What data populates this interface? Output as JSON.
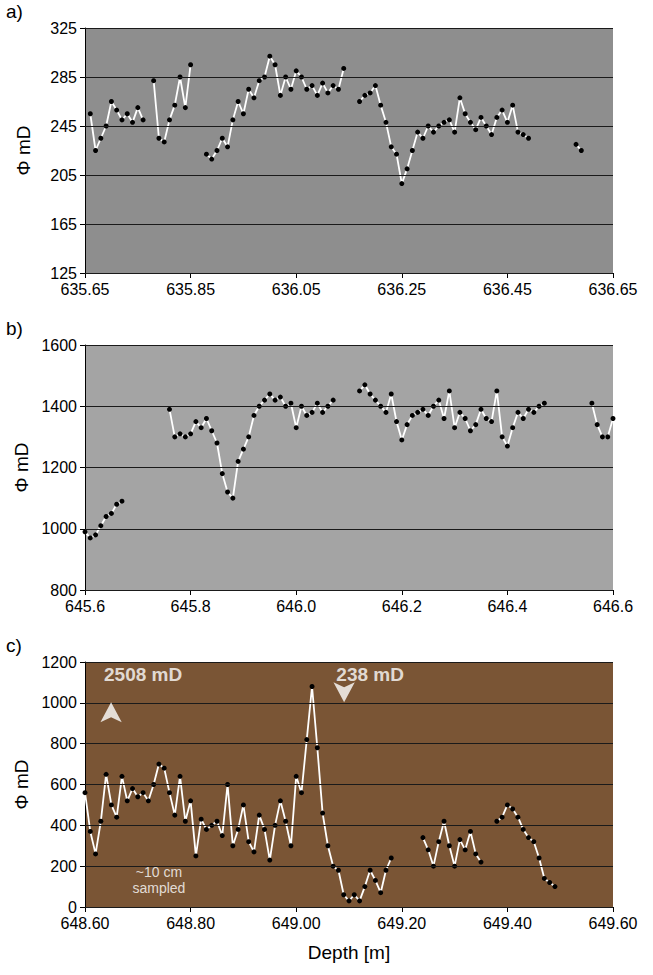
{
  "chart_data": [
    {
      "type": "line",
      "title": "a)",
      "ylabel": "Φ mD",
      "color": "#ffffff",
      "marker": "circle",
      "grid": true,
      "xlim": [
        635.65,
        636.65
      ],
      "xticks": [
        635.65,
        635.85,
        636.05,
        636.25,
        636.45,
        636.65
      ],
      "ylim": [
        125,
        325
      ],
      "yticks": [
        125,
        165,
        205,
        245,
        285,
        325
      ],
      "x": [
        635.66,
        635.67,
        635.68,
        635.69,
        635.7,
        635.71,
        635.72,
        635.73,
        635.74,
        635.75,
        635.76,
        635.77,
        635.78,
        635.79,
        635.8,
        635.81,
        635.82,
        635.83,
        635.84,
        635.85,
        635.86,
        635.88,
        635.89,
        635.9,
        635.91,
        635.92,
        635.93,
        635.94,
        635.95,
        635.96,
        635.97,
        635.98,
        635.99,
        636.0,
        636.01,
        636.02,
        636.03,
        636.04,
        636.05,
        636.06,
        636.07,
        636.08,
        636.09,
        636.1,
        636.11,
        636.12,
        636.13,
        636.14,
        636.15,
        636.17,
        636.18,
        636.19,
        636.2,
        636.21,
        636.22,
        636.23,
        636.24,
        636.25,
        636.26,
        636.27,
        636.28,
        636.29,
        636.3,
        636.31,
        636.32,
        636.33,
        636.34,
        636.35,
        636.36,
        636.37,
        636.38,
        636.39,
        636.4,
        636.41,
        636.42,
        636.43,
        636.44,
        636.45,
        636.46,
        636.47,
        636.48,
        636.49,
        636.5,
        636.58,
        636.59
      ],
      "values": [
        255,
        225,
        235,
        245,
        265,
        258,
        250,
        255,
        248,
        260,
        250,
        null,
        282,
        235,
        232,
        250,
        262,
        285,
        260,
        295,
        null,
        222,
        218,
        225,
        235,
        228,
        250,
        265,
        255,
        275,
        268,
        282,
        285,
        302,
        295,
        270,
        285,
        275,
        290,
        285,
        275,
        278,
        270,
        280,
        272,
        278,
        275,
        292,
        null,
        265,
        270,
        272,
        278,
        262,
        248,
        228,
        222,
        198,
        210,
        225,
        240,
        235,
        245,
        240,
        245,
        248,
        250,
        240,
        268,
        255,
        248,
        242,
        252,
        245,
        238,
        252,
        258,
        248,
        262,
        240,
        238,
        235,
        null,
        230,
        225
      ]
    },
    {
      "type": "line",
      "title": "b)",
      "ylabel": "Φ mD",
      "color": "#ffffff",
      "marker": "circle",
      "grid": true,
      "xlim": [
        645.6,
        646.6
      ],
      "xticks": [
        645.6,
        645.8,
        {
          "value": 646,
          "label": "646.0"
        },
        646.2,
        646.4,
        646.6
      ],
      "ylim": [
        800,
        1600
      ],
      "yticks": [
        800,
        1000,
        1200,
        1400,
        1600
      ],
      "x": [
        645.6,
        645.61,
        645.62,
        645.63,
        645.64,
        645.65,
        645.66,
        645.67,
        645.68,
        645.76,
        645.77,
        645.78,
        645.79,
        645.8,
        645.81,
        645.82,
        645.83,
        645.84,
        645.85,
        645.86,
        645.87,
        645.88,
        645.89,
        645.9,
        645.91,
        645.92,
        645.93,
        645.94,
        645.95,
        645.96,
        645.97,
        645.98,
        645.99,
        646.0,
        646.01,
        646.02,
        646.03,
        646.04,
        646.05,
        646.06,
        646.07,
        646.08,
        646.12,
        646.13,
        646.14,
        646.15,
        646.16,
        646.17,
        646.18,
        646.19,
        646.2,
        646.21,
        646.22,
        646.23,
        646.24,
        646.25,
        646.26,
        646.27,
        646.28,
        646.29,
        646.3,
        646.31,
        646.32,
        646.33,
        646.34,
        646.35,
        646.36,
        646.37,
        646.38,
        646.39,
        646.4,
        646.41,
        646.42,
        646.43,
        646.44,
        646.45,
        646.46,
        646.47,
        646.48,
        646.56,
        646.57,
        646.58,
        646.59,
        646.6
      ],
      "values": [
        990,
        970,
        980,
        1010,
        1040,
        1050,
        1080,
        1090,
        null,
        1390,
        1300,
        1310,
        1300,
        1310,
        1350,
        1330,
        1360,
        1320,
        1280,
        1180,
        1120,
        1100,
        1220,
        1260,
        1300,
        1370,
        1400,
        1420,
        1440,
        1420,
        1430,
        1400,
        1410,
        1330,
        1400,
        1370,
        1380,
        1410,
        1380,
        1400,
        1420,
        null,
        1450,
        1470,
        1440,
        1420,
        1400,
        1380,
        1440,
        1350,
        1290,
        1340,
        1370,
        1380,
        1390,
        1370,
        1400,
        1420,
        1360,
        1450,
        1330,
        1380,
        1360,
        1320,
        1340,
        1390,
        1360,
        1350,
        1450,
        1300,
        1270,
        1330,
        1380,
        1360,
        1390,
        1380,
        1400,
        1410,
        null,
        1410,
        1340,
        1300,
        1300,
        1360
      ]
    },
    {
      "type": "line",
      "title": "c)",
      "ylabel": "Φ mD",
      "xlabel": "Depth [m]",
      "color": "#ffffff",
      "marker": "circle",
      "grid": true,
      "xlim": [
        648.6,
        649.6
      ],
      "xticks": [
        {
          "value": 648.6,
          "label": "648.60"
        },
        {
          "value": 648.8,
          "label": "648.80"
        },
        {
          "value": 649,
          "label": "649.00"
        },
        {
          "value": 649.2,
          "label": "649.20"
        },
        {
          "value": 649.4,
          "label": "649.40"
        },
        {
          "value": 649.6,
          "label": "649.60"
        }
      ],
      "ylim": [
        0,
        1200
      ],
      "yticks": [
        0,
        200,
        400,
        600,
        800,
        1000,
        1200
      ],
      "x": [
        648.6,
        648.61,
        648.62,
        648.63,
        648.64,
        648.65,
        648.66,
        648.67,
        648.68,
        648.69,
        648.7,
        648.71,
        648.72,
        648.73,
        648.74,
        648.75,
        648.76,
        648.77,
        648.78,
        648.79,
        648.8,
        648.81,
        648.82,
        648.83,
        648.84,
        648.85,
        648.86,
        648.87,
        648.88,
        648.89,
        648.9,
        648.91,
        648.92,
        648.93,
        648.94,
        648.95,
        648.96,
        648.97,
        648.98,
        648.99,
        649.0,
        649.01,
        649.02,
        649.03,
        649.04,
        649.05,
        649.06,
        649.07,
        649.08,
        649.09,
        649.1,
        649.11,
        649.12,
        649.13,
        649.14,
        649.15,
        649.16,
        649.17,
        649.18,
        649.19,
        649.24,
        649.25,
        649.26,
        649.27,
        649.28,
        649.29,
        649.3,
        649.31,
        649.32,
        649.33,
        649.34,
        649.35,
        649.36,
        649.38,
        649.39,
        649.4,
        649.41,
        649.42,
        649.43,
        649.44,
        649.45,
        649.46,
        649.47,
        649.48,
        649.49
      ],
      "values": [
        560,
        370,
        260,
        420,
        650,
        500,
        440,
        640,
        520,
        580,
        540,
        560,
        520,
        600,
        700,
        680,
        560,
        450,
        640,
        420,
        520,
        250,
        430,
        380,
        400,
        420,
        350,
        600,
        300,
        380,
        500,
        320,
        270,
        450,
        380,
        230,
        400,
        520,
        420,
        300,
        640,
        560,
        820,
        1080,
        780,
        460,
        300,
        200,
        180,
        60,
        30,
        60,
        30,
        100,
        180,
        130,
        70,
        180,
        240,
        null,
        340,
        280,
        200,
        320,
        420,
        300,
        200,
        330,
        280,
        370,
        260,
        220,
        null,
        420,
        440,
        500,
        480,
        440,
        380,
        340,
        320,
        240,
        140,
        120,
        100
      ],
      "annotations": [
        {
          "text": "2508 mD",
          "x": 648.71,
          "y": 1140
        },
        {
          "text": "238 mD",
          "x": 649.14,
          "y": 1140
        },
        {
          "text": "~10 cm\nsampled",
          "x": 648.74,
          "y": 130
        }
      ]
    }
  ]
}
